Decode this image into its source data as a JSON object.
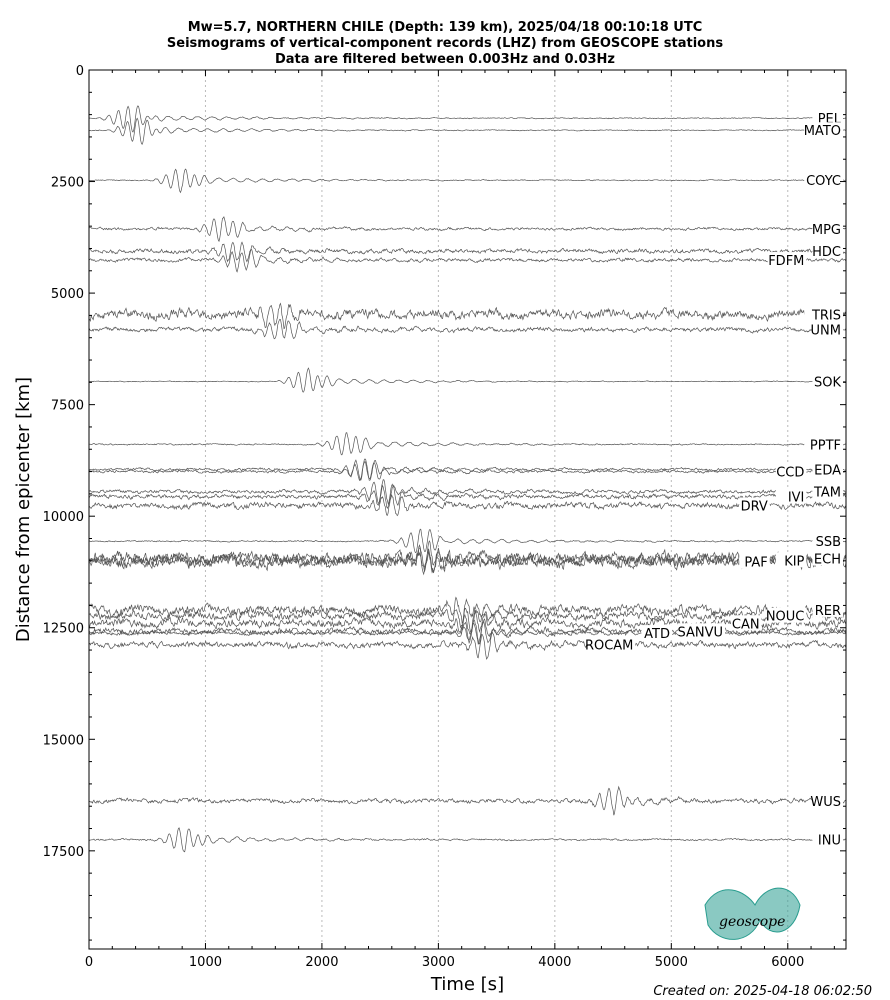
{
  "chart_data": {
    "type": "line",
    "title": [
      "Mw=5.7, NORTHERN CHILE (Depth: 139 km), 2025/04/18 00:10:18 UTC",
      "Seismograms of vertical-component records (LHZ) from GEOSCOPE stations",
      "Data are filtered between 0.003Hz and 0.03Hz"
    ],
    "xlabel": "Time [s]",
    "ylabel": "Distance from epicenter [km]",
    "xlim": [
      0,
      6500
    ],
    "ylim": [
      19700,
      0
    ],
    "y_inverted": true,
    "x_ticks": [
      0,
      1000,
      2000,
      3000,
      4000,
      5000,
      6000
    ],
    "y_ticks": [
      0,
      2500,
      5000,
      7500,
      10000,
      12500,
      15000,
      17500
    ],
    "x_grid": "dotted vertical",
    "line_color": "#555555",
    "series": [
      {
        "name": "PEL",
        "distance": 1080,
        "arrival": 350,
        "amp": 1.0,
        "noise": 0.06
      },
      {
        "name": "MATO",
        "distance": 1350,
        "arrival": 420,
        "amp": 1.0,
        "noise": 0.06
      },
      {
        "name": "COYC",
        "distance": 2470,
        "arrival": 800,
        "amp": 1.0,
        "noise": 0.06
      },
      {
        "name": "MPG",
        "distance": 3560,
        "arrival": 1150,
        "amp": 1.0,
        "noise": 0.15
      },
      {
        "name": "HDC",
        "distance": 4060,
        "arrival": 1250,
        "amp": 0.8,
        "noise": 0.25
      },
      {
        "name": "FDFM",
        "distance": 4260,
        "arrival": 1300,
        "amp": 0.9,
        "noise": 0.2
      },
      {
        "name": "TRIS",
        "distance": 5480,
        "arrival": 1600,
        "amp": 1.0,
        "noise": 0.55
      },
      {
        "name": "UNM",
        "distance": 5820,
        "arrival": 1650,
        "amp": 0.9,
        "noise": 0.25
      },
      {
        "name": "SOK",
        "distance": 6980,
        "arrival": 1880,
        "amp": 1.0,
        "noise": 0.05
      },
      {
        "name": "PPTF",
        "distance": 8390,
        "arrival": 2220,
        "amp": 1.0,
        "noise": 0.08
      },
      {
        "name": "EDA",
        "distance": 8950,
        "arrival": 2350,
        "amp": 0.9,
        "noise": 0.15
      },
      {
        "name": "CCD",
        "distance": 9000,
        "arrival": 2380,
        "amp": 0.8,
        "noise": 0.15
      },
      {
        "name": "TAM",
        "distance": 9450,
        "arrival": 2500,
        "amp": 0.9,
        "noise": 0.2
      },
      {
        "name": "IVI",
        "distance": 9560,
        "arrival": 2550,
        "amp": 0.9,
        "noise": 0.25
      },
      {
        "name": "DRV",
        "distance": 9760,
        "arrival": 2600,
        "amp": 0.8,
        "noise": 0.35
      },
      {
        "name": "SSB",
        "distance": 10560,
        "arrival": 2850,
        "amp": 1.0,
        "noise": 0.08
      },
      {
        "name": "ECH",
        "distance": 10950,
        "arrival": 2900,
        "amp": 0.9,
        "noise": 0.7
      },
      {
        "name": "PAF",
        "distance": 11020,
        "arrival": 2920,
        "amp": 0.9,
        "noise": 0.7
      },
      {
        "name": "KIP",
        "distance": 10990,
        "arrival": 2910,
        "amp": 0.8,
        "noise": 0.7
      },
      {
        "name": "RER",
        "distance": 12100,
        "arrival": 3200,
        "amp": 0.9,
        "noise": 0.55
      },
      {
        "name": "NOUC",
        "distance": 12230,
        "arrival": 3250,
        "amp": 0.9,
        "noise": 0.45
      },
      {
        "name": "CAN",
        "distance": 12400,
        "arrival": 3300,
        "amp": 0.9,
        "noise": 0.5
      },
      {
        "name": "SANVU",
        "distance": 12580,
        "arrival": 3330,
        "amp": 1.0,
        "noise": 0.35
      },
      {
        "name": "ATD",
        "distance": 12620,
        "arrival": 3340,
        "amp": 0.8,
        "noise": 0.2
      },
      {
        "name": "ROCAM",
        "distance": 12880,
        "arrival": 3400,
        "amp": 0.9,
        "noise": 0.35
      },
      {
        "name": "WUS",
        "distance": 16380,
        "arrival": 4500,
        "amp": 1.0,
        "noise": 0.25
      },
      {
        "name": "INU",
        "distance": 17250,
        "arrival": 820,
        "amp": 1.0,
        "noise": 0.1
      }
    ]
  },
  "logo": {
    "text": "geoscope",
    "color": "#2a9d8f"
  },
  "footer": {
    "text": "Created on: 2025-04-18 06:02:50"
  }
}
